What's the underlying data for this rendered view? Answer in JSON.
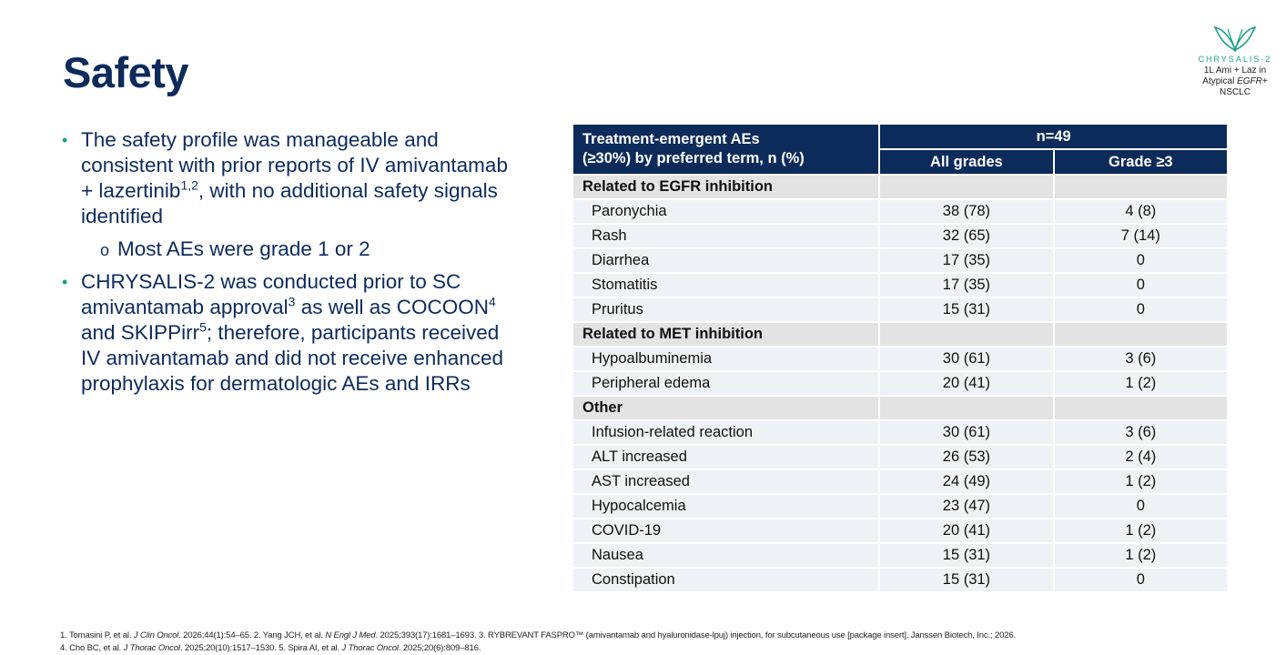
{
  "title": "Safety",
  "logo": {
    "brand": "CHRYSALIS-2",
    "line1": "1L Ami + Laz in",
    "line2_pre": "Atypical ",
    "line2_italic": "EGFR",
    "line2_post": "+",
    "line3": "NSCLC"
  },
  "bullets": {
    "b1": {
      "text_a": "The safety profile was manageable and consistent with prior reports of IV amivantamab + lazertinib",
      "sup_a": "1,2",
      "text_b": ", with no additional safety signals identified"
    },
    "b1_sub": "Most AEs were grade 1 or 2",
    "b2": {
      "text_a": "CHRYSALIS-2 was conducted prior to SC amivantamab approval",
      "sup_a": "3",
      "text_b": " as well as COCOON",
      "sup_b": "4",
      "text_c": " and SKIPPirr",
      "sup_c": "5",
      "text_d": "; therefore, participants received IV amivantamab and did not receive enhanced prophylaxis for dermatologic AEs and IRRs"
    }
  },
  "table": {
    "header_label_line1": "Treatment-emergent AEs",
    "header_label_line2": "(≥30%) by preferred term, n (%)",
    "header_n": "n=49",
    "col_all": "All grades",
    "col_grade3": "Grade ≥3",
    "sections": [
      {
        "title": "Related to EGFR inhibition",
        "rows": [
          {
            "term": "Paronychia",
            "all": "38 (78)",
            "g3": "4 (8)"
          },
          {
            "term": "Rash",
            "all": "32 (65)",
            "g3": "7 (14)"
          },
          {
            "term": "Diarrhea",
            "all": "17 (35)",
            "g3": "0"
          },
          {
            "term": "Stomatitis",
            "all": "17 (35)",
            "g3": "0"
          },
          {
            "term": "Pruritus",
            "all": "15 (31)",
            "g3": "0"
          }
        ]
      },
      {
        "title": "Related to MET inhibition",
        "rows": [
          {
            "term": "Hypoalbuminemia",
            "all": "30 (61)",
            "g3": "3 (6)"
          },
          {
            "term": "Peripheral edema",
            "all": "20 (41)",
            "g3": "1 (2)"
          }
        ]
      },
      {
        "title": "Other",
        "rows": [
          {
            "term": "Infusion-related reaction",
            "all": "30 (61)",
            "g3": "3 (6)"
          },
          {
            "term": "ALT increased",
            "all": "26 (53)",
            "g3": "2 (4)"
          },
          {
            "term": "AST increased",
            "all": "24 (49)",
            "g3": "1 (2)"
          },
          {
            "term": "Hypocalcemia",
            "all": "23 (47)",
            "g3": "0"
          },
          {
            "term": "COVID-19",
            "all": "20 (41)",
            "g3": "1 (2)"
          },
          {
            "term": "Nausea",
            "all": "15 (31)",
            "g3": "1 (2)"
          },
          {
            "term": "Constipation",
            "all": "15 (31)",
            "g3": "0"
          }
        ]
      }
    ]
  },
  "refs": {
    "r1a": "1. Tomasini P, et al. ",
    "r1j": "J Clin Oncol",
    "r1b": ". 2026;44(1):54–65. 2. Yang JCH, et al. ",
    "r2j": "N Engl J Med",
    "r2b": ". 2025;393(17):1681–1693. 3. RYBREVANT FASPRO™ (amivantamab and hyaluronidase-lpuj) injection, for subcutaneous use [package insert]. Janssen Biotech, Inc.; 2026.",
    "r4a": "4. Cho BC, et al. ",
    "r4j": "J Thorac Oncol",
    "r4b": ". 2025;20(10):1517–1530. 5. Spira AI, et al. ",
    "r5j": "J Thorac Oncol",
    "r5b": ". 2025;20(6):809–816."
  }
}
